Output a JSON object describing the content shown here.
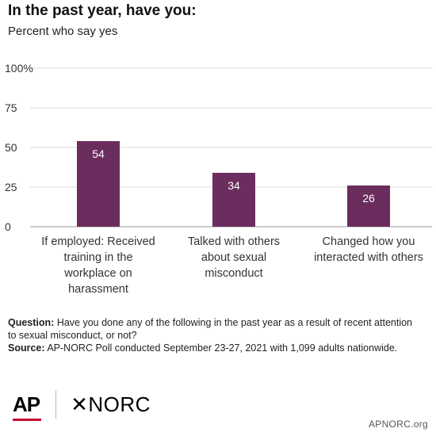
{
  "title": "In the past year, have you:",
  "subtitle": "Percent who say yes",
  "chart_data": {
    "type": "bar",
    "categories": [
      [
        "If employed: Received",
        "training in the",
        "workplace on",
        "harassment"
      ],
      [
        "Talked with others",
        "about sexual",
        "misconduct"
      ],
      [
        "Changed how you",
        "interacted with others"
      ]
    ],
    "values": [
      54,
      34,
      26
    ],
    "value_labels": [
      "54",
      "34",
      "26"
    ],
    "yticks": [
      "0",
      "25",
      "50",
      "75",
      "100%"
    ],
    "ytick_values": [
      0,
      25,
      50,
      75,
      100
    ],
    "ylim": [
      0,
      100
    ],
    "grid": true,
    "bar_color": "#6b2d5e"
  },
  "notes": {
    "question_label": "Question:",
    "question_text": " Have you done any of the following in the past year as a result of recent attention to sexual misconduct, or not?",
    "source_label": "Source:",
    "source_text": " AP-NORC Poll conducted September 23-27, 2021 with 1,099 adults nationwide."
  },
  "logos": {
    "ap": "AP",
    "norc": "✕NORC"
  },
  "site": "APNORC.org"
}
